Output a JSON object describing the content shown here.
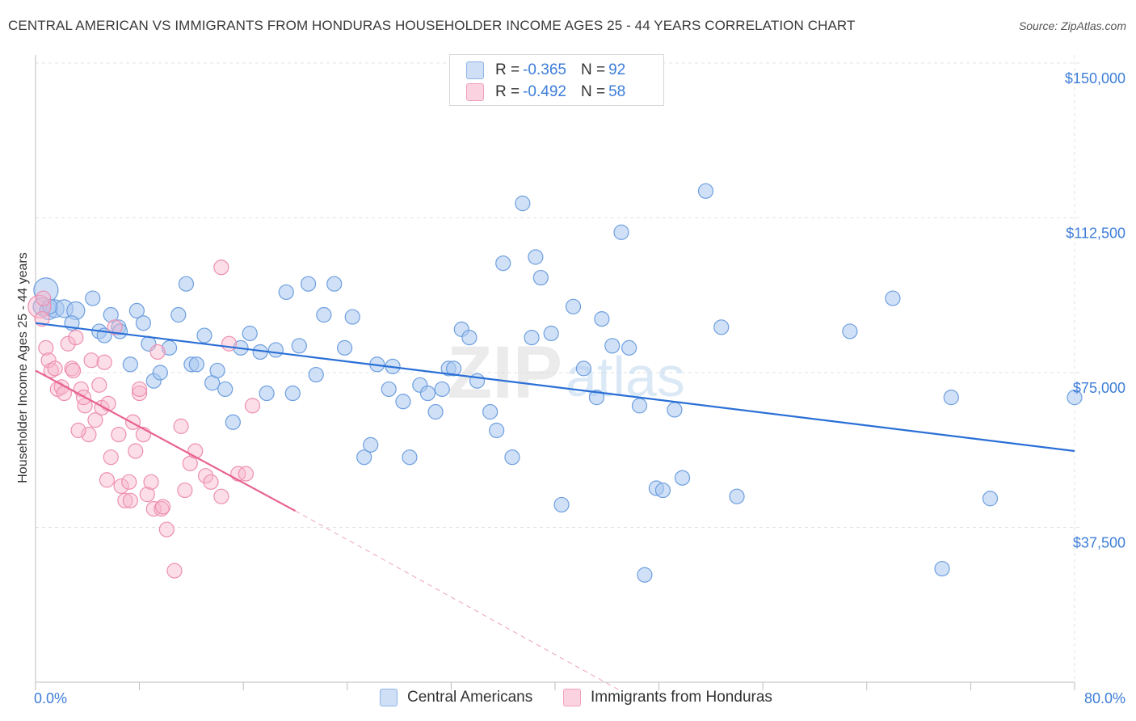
{
  "title": "CENTRAL AMERICAN VS IMMIGRANTS FROM HONDURAS HOUSEHOLDER INCOME AGES 25 - 44 YEARS CORRELATION CHART",
  "source": "Source: ZipAtlas.com",
  "watermark": {
    "zip": "ZIP",
    "atlas": "atlas"
  },
  "legend": {
    "r_label": "R =",
    "n_label": "N =",
    "series": [
      {
        "r": "-0.365",
        "n": "92",
        "color": "#a9c8f0"
      },
      {
        "r": "-0.492",
        "n": "58",
        "color": "#f7b6cb"
      }
    ]
  },
  "colors": {
    "blue_line": "#2a6fd6",
    "pink_line": "#e8628f",
    "blue_fill": "#a9c8f0",
    "pink_fill": "#f7b6cb",
    "axis_text": "#3d7dd8"
  },
  "chart_data": {
    "type": "scatter",
    "title": "CENTRAL AMERICAN VS IMMIGRANTS FROM HONDURAS HOUSEHOLDER INCOME AGES 25 - 44 YEARS CORRELATION CHART",
    "xlabel": "",
    "ylabel": "Householder Income Ages 25 - 44 years",
    "xlim": [
      0,
      80
    ],
    "ylim": [
      0,
      150000
    ],
    "x_tick_labels": [
      "0.0%",
      "80.0%"
    ],
    "y_ticks": [
      37500,
      75000,
      112500,
      150000
    ],
    "y_tick_labels": [
      "$37,500",
      "$75,000",
      "$112,500",
      "$150,000"
    ],
    "grid": true,
    "legend_position": "top-center",
    "series": [
      {
        "name": "Central Americans",
        "color": "#a9c8f0",
        "trend": {
          "x": [
            0,
            80
          ],
          "y": [
            87000,
            56000
          ]
        },
        "points": [
          [
            0.8,
            95000
          ],
          [
            0.5,
            91000
          ],
          [
            1.0,
            90000
          ],
          [
            1.5,
            90500
          ],
          [
            2.2,
            90500
          ],
          [
            3.1,
            90000
          ],
          [
            2.8,
            87000
          ],
          [
            4.4,
            93000
          ],
          [
            4.9,
            85000
          ],
          [
            5.3,
            84000
          ],
          [
            5.8,
            89000
          ],
          [
            6.4,
            86000
          ],
          [
            6.5,
            85000
          ],
          [
            7.8,
            90000
          ],
          [
            8.3,
            87000
          ],
          [
            8.7,
            82000
          ],
          [
            7.3,
            77000
          ],
          [
            9.1,
            73000
          ],
          [
            9.6,
            75000
          ],
          [
            10.3,
            81000
          ],
          [
            11.0,
            89000
          ],
          [
            11.6,
            96500
          ],
          [
            12.0,
            77000
          ],
          [
            12.4,
            77000
          ],
          [
            13.0,
            84000
          ],
          [
            13.6,
            72500
          ],
          [
            14.0,
            75500
          ],
          [
            14.6,
            71000
          ],
          [
            15.2,
            63000
          ],
          [
            15.8,
            81000
          ],
          [
            16.5,
            84500
          ],
          [
            17.3,
            80000
          ],
          [
            17.8,
            70000
          ],
          [
            18.5,
            80500
          ],
          [
            19.3,
            94500
          ],
          [
            19.8,
            70000
          ],
          [
            20.3,
            81500
          ],
          [
            21.0,
            96500
          ],
          [
            21.6,
            74500
          ],
          [
            22.2,
            89000
          ],
          [
            23.0,
            96500
          ],
          [
            23.8,
            81000
          ],
          [
            24.4,
            88500
          ],
          [
            25.3,
            54500
          ],
          [
            25.8,
            57500
          ],
          [
            26.3,
            77000
          ],
          [
            27.2,
            71000
          ],
          [
            27.5,
            76500
          ],
          [
            28.3,
            68000
          ],
          [
            28.8,
            54500
          ],
          [
            29.6,
            72000
          ],
          [
            30.2,
            70000
          ],
          [
            30.8,
            65500
          ],
          [
            31.3,
            71000
          ],
          [
            31.8,
            76000
          ],
          [
            32.2,
            76000
          ],
          [
            32.8,
            85500
          ],
          [
            33.4,
            83500
          ],
          [
            34.0,
            73000
          ],
          [
            35.0,
            65500
          ],
          [
            35.5,
            61000
          ],
          [
            36.0,
            101500
          ],
          [
            36.7,
            54500
          ],
          [
            37.5,
            116000
          ],
          [
            38.2,
            83500
          ],
          [
            38.5,
            103000
          ],
          [
            38.9,
            98000
          ],
          [
            39.7,
            84500
          ],
          [
            40.5,
            43000
          ],
          [
            41.4,
            91000
          ],
          [
            42.2,
            76000
          ],
          [
            43.2,
            69000
          ],
          [
            43.6,
            88000
          ],
          [
            44.4,
            81500
          ],
          [
            45.1,
            109000
          ],
          [
            45.7,
            81000
          ],
          [
            46.5,
            67000
          ],
          [
            46.9,
            26000
          ],
          [
            47.8,
            47000
          ],
          [
            48.3,
            46500
          ],
          [
            49.2,
            66000
          ],
          [
            49.8,
            49500
          ],
          [
            51.6,
            119000
          ],
          [
            52.8,
            86000
          ],
          [
            54.0,
            45000
          ],
          [
            62.7,
            85000
          ],
          [
            66.0,
            93000
          ],
          [
            69.8,
            27500
          ],
          [
            70.5,
            69000
          ],
          [
            73.5,
            44500
          ],
          [
            80.0,
            69000
          ],
          [
            1.1,
            91000
          ]
        ]
      },
      {
        "name": "Immigrants from Honduras",
        "color": "#f7b6cb",
        "trend": {
          "x": [
            0,
            20
          ],
          "y": [
            75500,
            41500
          ]
        },
        "trend_dashed": {
          "x": [
            20,
            45
          ],
          "y": [
            41500,
            -2000
          ]
        },
        "points": [
          [
            0.3,
            91000
          ],
          [
            0.5,
            88000
          ],
          [
            0.8,
            81000
          ],
          [
            1.0,
            78000
          ],
          [
            1.2,
            75500
          ],
          [
            1.5,
            76000
          ],
          [
            1.7,
            71000
          ],
          [
            2.0,
            71500
          ],
          [
            2.2,
            70000
          ],
          [
            2.5,
            82000
          ],
          [
            2.8,
            76000
          ],
          [
            3.1,
            83500
          ],
          [
            3.5,
            71000
          ],
          [
            3.8,
            67000
          ],
          [
            4.1,
            60000
          ],
          [
            4.3,
            78000
          ],
          [
            4.6,
            63500
          ],
          [
            4.9,
            72000
          ],
          [
            5.1,
            66500
          ],
          [
            5.3,
            77500
          ],
          [
            5.5,
            49000
          ],
          [
            5.8,
            54500
          ],
          [
            6.1,
            86000
          ],
          [
            6.4,
            60000
          ],
          [
            6.6,
            47500
          ],
          [
            6.9,
            44000
          ],
          [
            7.2,
            48500
          ],
          [
            7.5,
            63000
          ],
          [
            7.7,
            56000
          ],
          [
            8.0,
            70000
          ],
          [
            8.3,
            60000
          ],
          [
            8.6,
            45500
          ],
          [
            8.9,
            48500
          ],
          [
            9.1,
            42000
          ],
          [
            9.4,
            80000
          ],
          [
            9.7,
            42000
          ],
          [
            10.1,
            37000
          ],
          [
            10.7,
            27000
          ],
          [
            11.2,
            62000
          ],
          [
            11.5,
            46500
          ],
          [
            11.9,
            53000
          ],
          [
            12.3,
            56000
          ],
          [
            13.1,
            50000
          ],
          [
            13.5,
            48500
          ],
          [
            14.3,
            45000
          ],
          [
            14.9,
            82000
          ],
          [
            15.6,
            50500
          ],
          [
            16.7,
            67000
          ],
          [
            14.3,
            100500
          ],
          [
            16.2,
            50500
          ],
          [
            3.7,
            69000
          ],
          [
            2.9,
            75500
          ],
          [
            0.6,
            93000
          ],
          [
            7.3,
            44000
          ],
          [
            5.6,
            67500
          ],
          [
            9.8,
            42500
          ],
          [
            3.3,
            61000
          ],
          [
            8.0,
            71000
          ]
        ]
      }
    ]
  }
}
